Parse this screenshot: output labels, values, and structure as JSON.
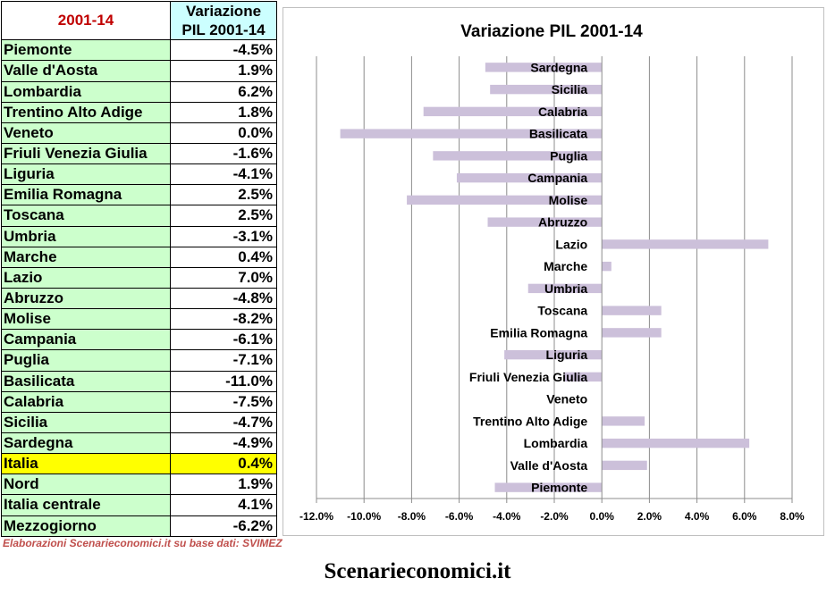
{
  "table": {
    "header_left": "2001-14",
    "header_right": "Variazione PIL 2001-14",
    "rows": [
      {
        "region": "Piemonte",
        "value": "-4.5%"
      },
      {
        "region": "Valle d'Aosta",
        "value": "1.9%"
      },
      {
        "region": "Lombardia",
        "value": "6.2%"
      },
      {
        "region": "Trentino Alto Adige",
        "value": "1.8%"
      },
      {
        "region": "Veneto",
        "value": "0.0%"
      },
      {
        "region": "Friuli Venezia Giulia",
        "value": "-1.6%"
      },
      {
        "region": "Liguria",
        "value": "-4.1%"
      },
      {
        "region": "Emilia Romagna",
        "value": "2.5%"
      },
      {
        "region": "Toscana",
        "value": "2.5%"
      },
      {
        "region": "Umbria",
        "value": "-3.1%"
      },
      {
        "region": "Marche",
        "value": "0.4%"
      },
      {
        "region": "Lazio",
        "value": "7.0%"
      },
      {
        "region": "Abruzzo",
        "value": "-4.8%"
      },
      {
        "region": "Molise",
        "value": "-8.2%"
      },
      {
        "region": "Campania",
        "value": "-6.1%"
      },
      {
        "region": "Puglia",
        "value": "-7.1%"
      },
      {
        "region": "Basilicata",
        "value": "-11.0%"
      },
      {
        "region": "Calabria",
        "value": "-7.5%"
      },
      {
        "region": "Sicilia",
        "value": "-4.7%"
      },
      {
        "region": "Sardegna",
        "value": "-4.9%"
      },
      {
        "region": "Italia",
        "value": "0.4%",
        "highlight": true
      },
      {
        "region": "Nord",
        "value": "1.9%"
      },
      {
        "region": "Italia centrale",
        "value": "4.1%"
      },
      {
        "region": "Mezzogiorno",
        "value": "-6.2%"
      }
    ],
    "colors": {
      "region_bg": "#ccffcc",
      "header_right_bg": "#ccffff",
      "header_left_text": "#c00000",
      "highlight_bg": "#ffff00"
    }
  },
  "source_note": "Elaborazioni Scenarieconomici.it su base dati: SVIMEZ",
  "brand": "Scenarieconomici.it",
  "chart_data": {
    "type": "bar",
    "orientation": "horizontal",
    "title": "Variazione PIL 2001-14",
    "categories": [
      "Piemonte",
      "Valle d'Aosta",
      "Lombardia",
      "Trentino Alto Adige",
      "Veneto",
      "Friuli Venezia Giulia",
      "Liguria",
      "Emilia Romagna",
      "Toscana",
      "Umbria",
      "Marche",
      "Lazio",
      "Abruzzo",
      "Molise",
      "Campania",
      "Puglia",
      "Basilicata",
      "Calabria",
      "Sicilia",
      "Sardegna"
    ],
    "values": [
      -4.5,
      1.9,
      6.2,
      1.8,
      0.0,
      -1.6,
      -4.1,
      2.5,
      2.5,
      -3.1,
      0.4,
      7.0,
      -4.8,
      -8.2,
      -6.1,
      -7.1,
      -11.0,
      -7.5,
      -4.7,
      -4.9
    ],
    "xlim": [
      -12,
      8
    ],
    "xticks": [
      -12,
      -10,
      -8,
      -6,
      -4,
      -2,
      0,
      2,
      4,
      6,
      8
    ],
    "xtick_labels": [
      "-12.0%",
      "-10.0%",
      "-8.0%",
      "-6.0%",
      "-4.0%",
      "-2.0%",
      "0.0%",
      "2.0%",
      "4.0%",
      "6.0%",
      "8.0%"
    ],
    "grid": true,
    "category_order": "bottom-to-top",
    "bar_color": "#ccc0da",
    "grid_color": "#8c8c8c"
  }
}
